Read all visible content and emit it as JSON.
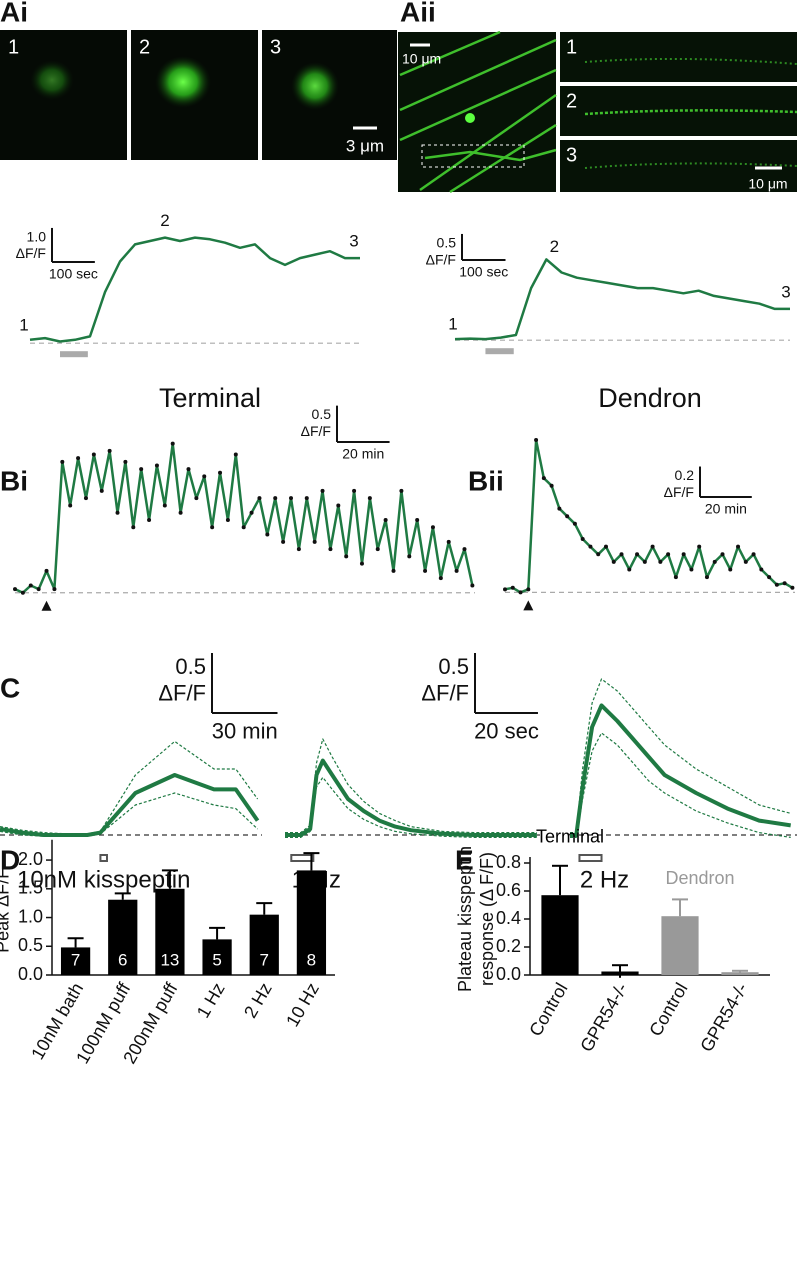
{
  "panels": {
    "panel_labels": [
      "Ai",
      "Aii",
      "Bi",
      "Bii",
      "C",
      "D",
      "E"
    ],
    "headers": [
      "Terminal",
      "Dendron"
    ],
    "Ai": {
      "image_labels": [
        "1",
        "2",
        "3"
      ],
      "scale_bar": "3 μm"
    },
    "Aii": {
      "overview_scale_bar": "10 μm",
      "image_labels": [
        "1",
        "2",
        "3"
      ],
      "scale_bar": "10 μm"
    }
  },
  "chart_data": [
    {
      "type": "line",
      "xlim": [
        0,
        770
      ],
      "ylim": [
        -0.2,
        3.5
      ],
      "x": [
        0,
        35,
        70,
        105,
        140,
        175,
        210,
        245,
        280,
        315,
        350,
        385,
        420,
        455,
        490,
        525,
        560,
        595,
        630,
        665,
        700,
        735,
        770
      ],
      "series": [
        {
          "color": "#1f7a43",
          "values": [
            0.1,
            0.15,
            0.05,
            0.1,
            0.2,
            1.5,
            2.4,
            2.9,
            3.0,
            3.1,
            3.0,
            3.1,
            3.05,
            2.95,
            2.8,
            2.9,
            2.5,
            2.3,
            2.5,
            2.6,
            2.7,
            2.5,
            2.5
          ]
        }
      ],
      "baseline_color": "#aaaaaa",
      "stimulus": [
        70,
        135
      ],
      "stimulus_color": "#aaaaaa",
      "scale_bar": {
        "y": {
          "value": 1,
          "label": "1.0"
        },
        "y_unit": "ΔF/F",
        "x": {
          "value": 100,
          "label": "100 sec"
        }
      },
      "annotations": [
        "1",
        "2",
        "3"
      ]
    },
    {
      "type": "line",
      "xlim": [
        0,
        770
      ],
      "ylim": [
        -0.15,
        2.0
      ],
      "x": [
        0,
        35,
        70,
        105,
        140,
        175,
        210,
        245,
        280,
        315,
        350,
        385,
        420,
        455,
        490,
        525,
        560,
        595,
        630,
        665,
        700,
        735,
        770
      ],
      "series": [
        {
          "color": "#1f7a43",
          "values": [
            0.02,
            0.03,
            0.02,
            0.05,
            0.1,
            1.0,
            1.55,
            1.3,
            1.2,
            1.15,
            1.1,
            1.05,
            1.0,
            1.0,
            0.95,
            0.9,
            0.95,
            0.85,
            0.8,
            0.75,
            0.7,
            0.6,
            0.6
          ]
        }
      ],
      "baseline_color": "#aaaaaa",
      "stimulus": [
        70,
        135
      ],
      "stimulus_color": "#aaaaaa",
      "scale_bar": {
        "y": {
          "value": 0.5,
          "label": "0.5"
        },
        "y_unit": "ΔF/F",
        "x": {
          "value": 100,
          "label": "100 sec"
        }
      },
      "annotations": [
        "1",
        "2",
        "3"
      ]
    },
    {
      "type": "line",
      "xlim": [
        0,
        175
      ],
      "ylim": [
        -0.1,
        2.1
      ],
      "markers": true,
      "x": [
        0,
        3,
        6,
        9,
        12,
        15,
        18,
        21,
        24,
        27,
        30,
        33,
        36,
        39,
        42,
        45,
        48,
        51,
        54,
        57,
        60,
        63,
        66,
        69,
        72,
        75,
        78,
        81,
        84,
        87,
        90,
        93,
        96,
        99,
        102,
        105,
        108,
        111,
        114,
        117,
        120,
        123,
        126,
        129,
        132,
        135,
        138,
        141,
        144,
        147,
        150,
        153,
        156,
        159,
        162,
        165,
        168,
        171,
        174
      ],
      "series": [
        {
          "color": "#1f7a43",
          "values": [
            0.05,
            0.0,
            0.1,
            0.05,
            0.3,
            0.05,
            1.8,
            1.2,
            1.85,
            1.3,
            1.9,
            1.4,
            1.95,
            1.1,
            1.8,
            0.9,
            1.7,
            1.0,
            1.75,
            1.2,
            2.05,
            1.1,
            1.7,
            1.3,
            1.6,
            0.9,
            1.65,
            1.0,
            1.9,
            0.9,
            1.1,
            1.3,
            0.8,
            1.3,
            0.7,
            1.3,
            0.6,
            1.3,
            0.7,
            1.4,
            0.6,
            1.2,
            0.5,
            1.4,
            0.4,
            1.3,
            0.6,
            1.0,
            0.3,
            1.4,
            0.5,
            1.0,
            0.3,
            0.9,
            0.2,
            0.7,
            0.3,
            0.6,
            0.1
          ]
        }
      ],
      "baseline_color": "#aaaaaa",
      "stimulus_x": 12,
      "scale_bar": {
        "y": {
          "value": 0.5,
          "label": "0.5"
        },
        "y_unit": "ΔF/F",
        "x": {
          "value": 20,
          "label": "20 min"
        }
      }
    },
    {
      "type": "line",
      "xlim": [
        0,
        112
      ],
      "ylim": [
        -0.05,
        1.0
      ],
      "markers": true,
      "x": [
        0,
        3,
        6,
        9,
        12,
        15,
        18,
        21,
        24,
        27,
        30,
        33,
        36,
        39,
        42,
        45,
        48,
        51,
        54,
        57,
        60,
        63,
        66,
        69,
        72,
        75,
        78,
        81,
        84,
        87,
        90,
        93,
        96,
        99,
        102,
        105,
        108,
        111
      ],
      "series": [
        {
          "color": "#1f7a43",
          "values": [
            0.02,
            0.03,
            0.0,
            0.02,
            1.0,
            0.75,
            0.7,
            0.55,
            0.5,
            0.45,
            0.35,
            0.3,
            0.25,
            0.3,
            0.2,
            0.25,
            0.15,
            0.25,
            0.2,
            0.3,
            0.2,
            0.25,
            0.1,
            0.25,
            0.15,
            0.3,
            0.1,
            0.2,
            0.25,
            0.15,
            0.3,
            0.2,
            0.25,
            0.15,
            0.1,
            0.05,
            0.06,
            0.03
          ]
        }
      ],
      "baseline_color": "#aaaaaa",
      "stimulus_x": 9,
      "scale_bar": {
        "y": {
          "value": 0.2,
          "label": "0.2"
        },
        "y_unit": "ΔF/F",
        "x": {
          "value": 20,
          "label": "20 min"
        }
      }
    },
    {
      "type": "line",
      "xlim": [
        0,
        120
      ],
      "ylim": [
        -0.05,
        1.45
      ],
      "x": [
        0,
        10,
        20,
        30,
        40,
        46,
        62,
        80,
        98,
        108,
        118
      ],
      "series": [
        {
          "color": "#1f7a43",
          "values": [
            0.05,
            0.02,
            0,
            0,
            0,
            0.02,
            0.35,
            0.5,
            0.38,
            0.38,
            0.12
          ]
        },
        {
          "color": "#1f7a43",
          "dashed": true,
          "values": [
            0.07,
            0.04,
            0.02,
            0.01,
            0.01,
            0.03,
            0.5,
            0.78,
            0.55,
            0.55,
            0.3
          ]
        },
        {
          "color": "#1f7a43",
          "dashed": true,
          "values": [
            0.03,
            0.0,
            -0.01,
            -0.01,
            -0.01,
            0.01,
            0.25,
            0.35,
            0.25,
            0.22,
            0.05
          ]
        }
      ],
      "baseline_color": "#333333",
      "stimulus": [
        46,
        49
      ],
      "stimulus_color": "#555555",
      "stimulus_label": "10nM kisspeptin",
      "scale_bar": {
        "y": {
          "value": 0.5,
          "label": "0.5"
        },
        "y_unit": "ΔF/F",
        "x": {
          "value": 30,
          "label": "30 min"
        }
      }
    },
    {
      "type": "line",
      "xlim": [
        0,
        81
      ],
      "ylim": [
        -0.05,
        1.45
      ],
      "x": [
        0,
        5,
        8,
        10,
        12,
        15,
        20,
        25,
        30,
        35,
        40,
        50,
        60,
        70,
        80
      ],
      "series": [
        {
          "color": "#1f7a43",
          "values": [
            0,
            0,
            0.05,
            0.5,
            0.62,
            0.5,
            0.3,
            0.2,
            0.12,
            0.07,
            0.04,
            0.01,
            0,
            0,
            0
          ]
        },
        {
          "color": "#1f7a43",
          "dashed": true,
          "values": [
            0.02,
            0.02,
            0.08,
            0.6,
            0.8,
            0.65,
            0.42,
            0.28,
            0.18,
            0.12,
            0.07,
            0.03,
            0.02,
            0.02,
            0.02
          ]
        },
        {
          "color": "#1f7a43",
          "dashed": true,
          "values": [
            -0.02,
            -0.02,
            0.03,
            0.4,
            0.48,
            0.38,
            0.22,
            0.13,
            0.07,
            0.03,
            0.01,
            -0.01,
            -0.02,
            -0.02,
            -0.02
          ]
        }
      ],
      "baseline_color": "#333333",
      "stimulus": [
        2,
        9
      ],
      "stimulus_color": "#555555",
      "stimulus_label": "1 Hz",
      "scale_bar": {
        "y": {
          "value": 0.5,
          "label": "0.5"
        },
        "y_unit": "ΔF/F",
        "x": {
          "value": 20,
          "label": "20 sec"
        }
      }
    },
    {
      "type": "line",
      "xlim": [
        0,
        72
      ],
      "ylim": [
        -0.05,
        1.45
      ],
      "x": [
        0,
        2,
        4,
        7,
        10,
        15,
        20,
        25,
        30,
        40,
        50,
        60,
        70
      ],
      "series": [
        {
          "color": "#1f7a43",
          "values": [
            0,
            0,
            0.4,
            0.9,
            1.08,
            0.95,
            0.8,
            0.65,
            0.5,
            0.35,
            0.22,
            0.12,
            0.08
          ]
        },
        {
          "color": "#1f7a43",
          "dashed": true,
          "values": [
            0.02,
            0.02,
            0.55,
            1.1,
            1.3,
            1.2,
            1.05,
            0.9,
            0.75,
            0.55,
            0.4,
            0.25,
            0.18
          ]
        },
        {
          "color": "#1f7a43",
          "dashed": true,
          "values": [
            -0.02,
            -0.02,
            0.3,
            0.7,
            0.85,
            0.75,
            0.6,
            0.45,
            0.35,
            0.2,
            0.1,
            0.02,
            -0.02
          ]
        }
      ],
      "baseline_color": "#333333",
      "stimulus": [
        3,
        10
      ],
      "stimulus_color": "#555555",
      "stimulus_label": "2 Hz"
    },
    {
      "type": "bar",
      "ylabel": "Peak ΔF/F",
      "ylim": [
        0,
        2.25
      ],
      "yticks": [
        {
          "value": 0,
          "label": "0.0"
        },
        {
          "value": 0.5,
          "label": "0.5"
        },
        {
          "value": 1,
          "label": "1.0"
        },
        {
          "value": 1.5,
          "label": "1.5"
        },
        {
          "value": 2,
          "label": "2.0"
        }
      ],
      "categories": [
        "10nM bath",
        "100nM puff",
        "200nM puff",
        "1 Hz",
        "2 Hz",
        "10 Hz"
      ],
      "values": [
        0.48,
        1.31,
        1.5,
        0.62,
        1.05,
        1.82
      ],
      "errors": [
        0.16,
        0.11,
        0.32,
        0.2,
        0.2,
        0.3
      ],
      "n_labels": [
        "7",
        "6",
        "13",
        "5",
        "7",
        "8"
      ],
      "colors": [
        "#000000",
        "#000000",
        "#000000",
        "#000000",
        "#000000",
        "#000000"
      ]
    },
    {
      "type": "bar",
      "ylabel": [
        "Plateau kisspeptin",
        "response (Δ F/F)"
      ],
      "ylim": [
        0,
        0.8
      ],
      "yticks": [
        {
          "value": 0,
          "label": "0.0"
        },
        {
          "value": 0.2,
          "label": "0.2"
        },
        {
          "value": 0.4,
          "label": "0.4"
        },
        {
          "value": 0.6,
          "label": "0.6"
        },
        {
          "value": 0.8,
          "label": "0.8"
        }
      ],
      "categories": [
        "Control",
        "GPR54-/-",
        "Control",
        "GPR54-/-"
      ],
      "values": [
        0.57,
        0.025,
        0.42,
        0.02
      ],
      "errors": [
        0.21,
        0.045,
        0.12,
        0.01
      ],
      "colors": [
        "#000000",
        "#000000",
        "#999999",
        "#999999"
      ],
      "annotations": [
        {
          "text": "Terminal",
          "color": "#000000"
        },
        {
          "text": "Dendron",
          "color": "#999999"
        }
      ]
    }
  ]
}
